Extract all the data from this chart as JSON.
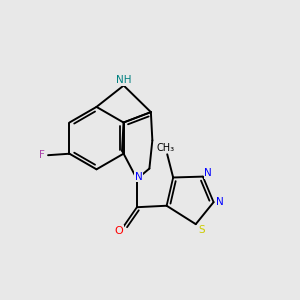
{
  "background_color": "#e8e8e8",
  "bond_color": "#000000",
  "atom_colors": {
    "N": "#0000ff",
    "NH": "#008080",
    "F": "#aa44aa",
    "O": "#ff0000",
    "S": "#cccc00",
    "C": "#000000"
  },
  "figsize": [
    3.0,
    3.0
  ],
  "dpi": 100
}
